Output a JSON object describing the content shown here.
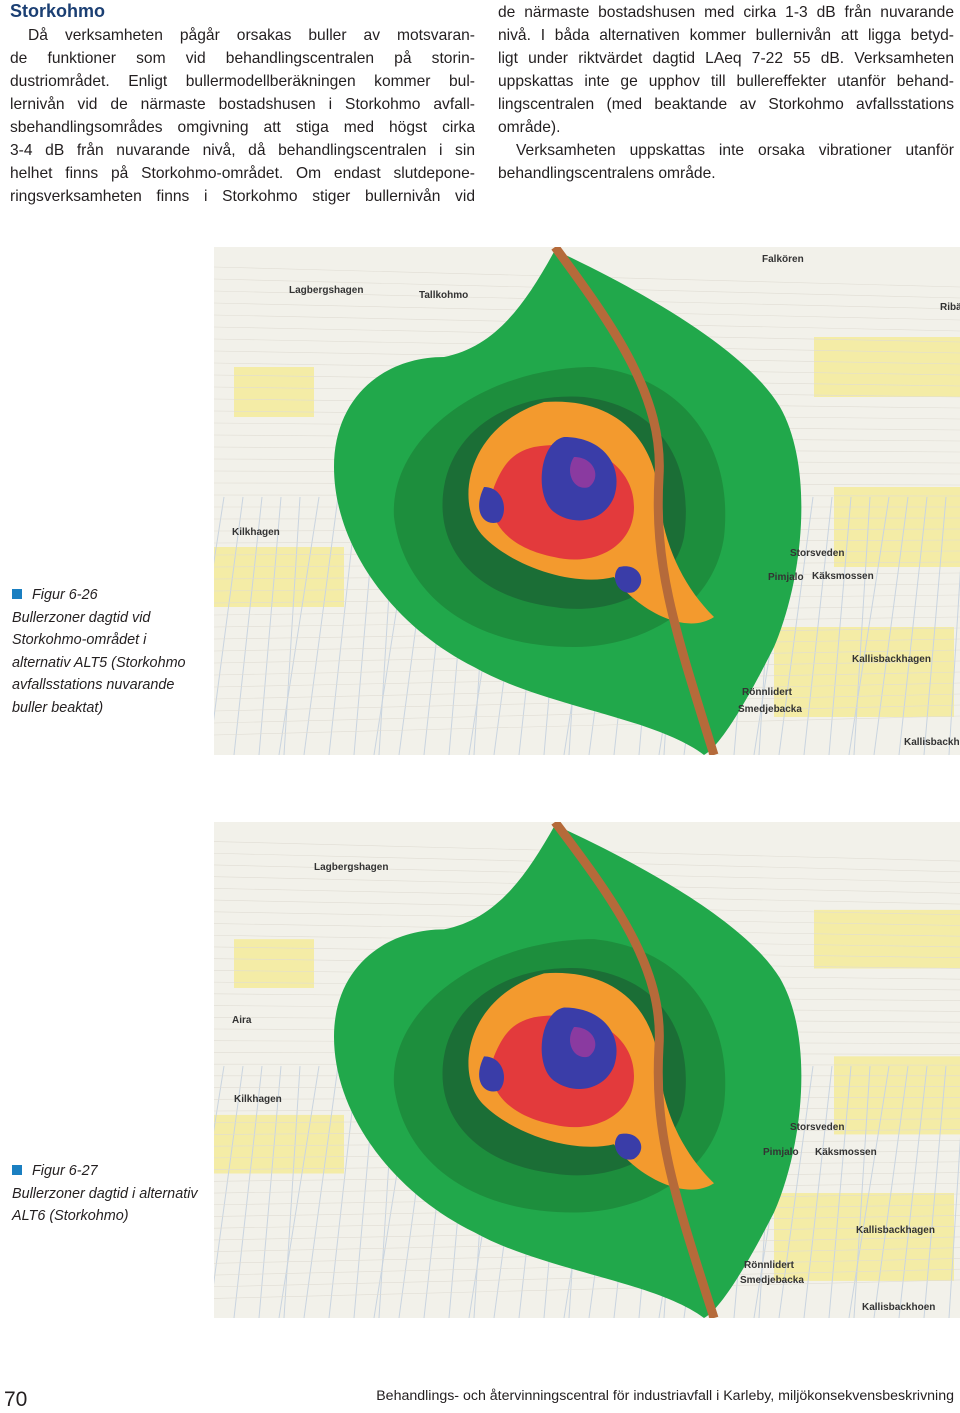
{
  "heading": "Storkohmo",
  "left_column": {
    "lines": [
      "Då verksamheten pågår orsakas buller av motsvaran-",
      "de funktioner som vid behandlingscentralen på storin-",
      "dustriområdet. Enligt bullermodellberäkningen kommer bul-",
      "lernivån vid de närmaste bostadshusen i Storkohmo avfall-",
      "sbehandlingsområdes omgivning att stiga med högst cirka",
      "3-4 dB från nuvarande nivå, då behandlingscentralen i sin",
      "helhet finns på Storkohmo-området. Om endast slutdepone-",
      "ringsverksamheten finns i Storkohmo stiger bullernivån vid"
    ]
  },
  "right_column": {
    "paragraphs": [
      {
        "lines": [
          "de närmaste bostadshusen med cirka 1-3 dB från nuvarande",
          "nivå. I båda alternativen kommer bullernivån att ligga betyd-",
          "ligt under riktvärdet dagtid LAeq 7-22 55 dB. Verksamheten",
          "uppskattas inte ge upphov till bullereffekter utanför behand-",
          "lingscentralen (med beaktande av Storkohmo avfallsstations",
          "område)."
        ]
      },
      {
        "lines": [
          "Verksamheten uppskattas inte orsaka vibrationer utanför",
          "behandlingscentralens område."
        ]
      }
    ]
  },
  "figures": [
    {
      "label": "Figur 6-26",
      "lines": [
        "Bullerzoner dagtid vid",
        "Storkohmo-området i",
        "alternativ ALT5 (Storkohmo",
        "avfallsstations nuvarande",
        "buller beaktat)"
      ],
      "map_labels": [
        "Lagbergshagen",
        "Tallkohmo",
        "Falkören",
        "Ribä",
        "Kilkhagen",
        "Storsveden",
        "Pimjalo",
        "Käksmossen",
        "Kallisbackhagen",
        "Rönnlidert",
        "Smedjebacka",
        "Kallisbackho"
      ]
    },
    {
      "label": "Figur 6-27",
      "lines": [
        "Bullerzoner dagtid i alternativ",
        "ALT6 (Storkohmo)"
      ],
      "map_labels": [
        "Lagbergshagen",
        "Aira",
        "Kilkhagen",
        "Storsveden",
        "Pimjalo",
        "Käksmossen",
        "Kallisbackhagen",
        "Rönnlidert",
        "Smedjebacka",
        "Kallisbackhoen"
      ]
    }
  ],
  "footer": {
    "page_number": "70",
    "text": "Behandlings- och återvinningscentral för industriavfall i Karleby, miljökonsekvensbeskrivning"
  }
}
